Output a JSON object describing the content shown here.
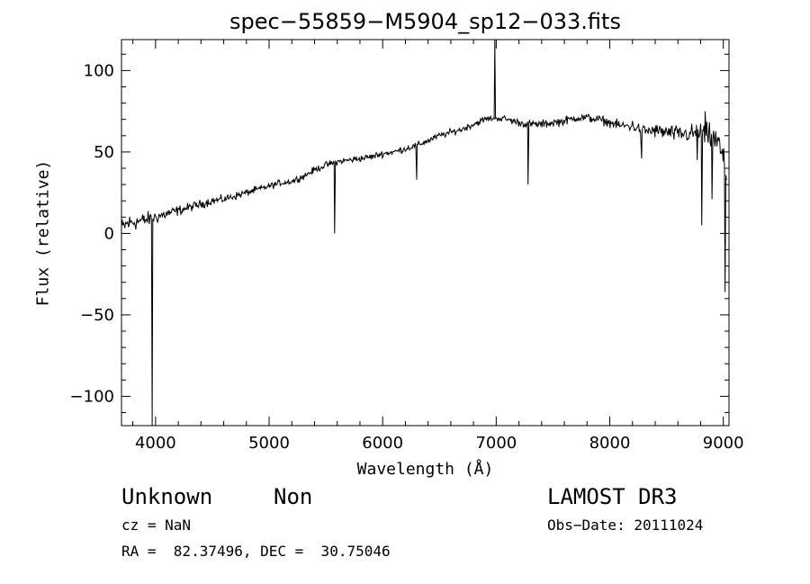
{
  "chart_data": {
    "type": "line",
    "title": "spec−55859−M5904_sp12−033.fits",
    "xlabel": "Wavelength (Å)",
    "ylabel": "Flux (relative)",
    "xlim": [
      3700,
      9050
    ],
    "ylim": [
      -118,
      119
    ],
    "x_ticks": [
      4000,
      5000,
      6000,
      7000,
      8000,
      9000
    ],
    "x_tick_labels": [
      "4000",
      "5000",
      "6000",
      "7000",
      "8000",
      "9000"
    ],
    "y_ticks": [
      -100,
      -50,
      0,
      50,
      100
    ],
    "y_tick_labels": [
      "−100",
      "−50",
      "0",
      "50",
      "100"
    ],
    "series": [
      {
        "name": "spectrum",
        "anchors": [
          [
            3700,
            3
          ],
          [
            3750,
            6
          ],
          [
            3800,
            7
          ],
          [
            3900,
            8
          ],
          [
            4000,
            10
          ],
          [
            4100,
            12
          ],
          [
            4200,
            14
          ],
          [
            4300,
            16
          ],
          [
            4400,
            18
          ],
          [
            4500,
            20
          ],
          [
            4600,
            21
          ],
          [
            4700,
            23
          ],
          [
            4800,
            25
          ],
          [
            4900,
            27
          ],
          [
            5000,
            29
          ],
          [
            5100,
            31
          ],
          [
            5200,
            32
          ],
          [
            5300,
            35
          ],
          [
            5400,
            39
          ],
          [
            5500,
            42
          ],
          [
            5600,
            44
          ],
          [
            5700,
            45
          ],
          [
            5800,
            46
          ],
          [
            5900,
            47
          ],
          [
            6000,
            49
          ],
          [
            6100,
            50
          ],
          [
            6200,
            52
          ],
          [
            6300,
            54
          ],
          [
            6400,
            57
          ],
          [
            6500,
            60
          ],
          [
            6600,
            62
          ],
          [
            6700,
            64
          ],
          [
            6800,
            67
          ],
          [
            6900,
            70
          ],
          [
            7000,
            71
          ],
          [
            7100,
            70
          ],
          [
            7200,
            68
          ],
          [
            7300,
            67
          ],
          [
            7400,
            67
          ],
          [
            7500,
            68
          ],
          [
            7600,
            69
          ],
          [
            7700,
            71
          ],
          [
            7800,
            71
          ],
          [
            7900,
            70
          ],
          [
            8000,
            68
          ],
          [
            8100,
            66
          ],
          [
            8200,
            66
          ],
          [
            8300,
            63
          ],
          [
            8400,
            63
          ],
          [
            8500,
            62
          ],
          [
            8600,
            61
          ],
          [
            8700,
            61
          ],
          [
            8800,
            62
          ],
          [
            8900,
            59
          ],
          [
            8960,
            55
          ],
          [
            9000,
            45
          ],
          [
            9030,
            35
          ]
        ],
        "noise_amplitude": [
          [
            3700,
            9
          ],
          [
            4000,
            6
          ],
          [
            4300,
            4
          ],
          [
            5000,
            3
          ],
          [
            6000,
            3
          ],
          [
            7000,
            3
          ],
          [
            7500,
            4
          ],
          [
            8000,
            4
          ],
          [
            8300,
            6
          ],
          [
            8700,
            8
          ],
          [
            8900,
            12
          ],
          [
            9030,
            12
          ]
        ],
        "spikes": [
          [
            3970,
            -118
          ],
          [
            5577,
            0
          ],
          [
            6300,
            33
          ],
          [
            6988,
            119
          ],
          [
            7280,
            30
          ],
          [
            8280,
            46
          ],
          [
            8770,
            45
          ],
          [
            8810,
            5
          ],
          [
            8840,
            75
          ],
          [
            8900,
            21
          ],
          [
            9015,
            -36
          ]
        ]
      }
    ]
  },
  "footer": {
    "object_class": "Unknown",
    "subclass": "Non",
    "survey": "LAMOST DR3",
    "cz": "cz = NaN",
    "obs_date": "Obs−Date: 20111024",
    "coords": "RA =  82.37496, DEC =  30.75046"
  }
}
